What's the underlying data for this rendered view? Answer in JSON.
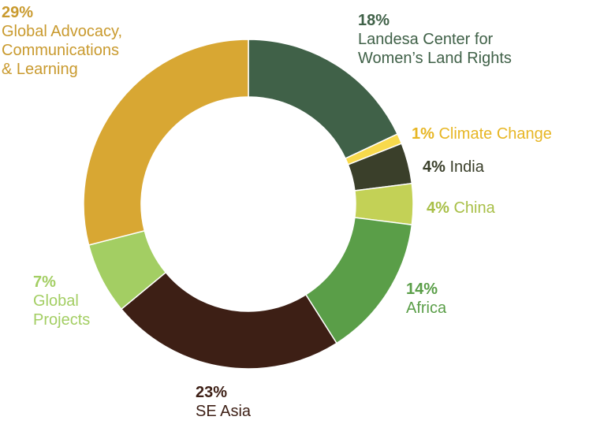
{
  "chart_data": {
    "type": "pie",
    "variant": "donut",
    "start_angle_deg": 0,
    "direction": "clockwise",
    "slices": [
      {
        "label": "Landesa Center for Women’s Land Rights",
        "pct_label": "18%",
        "value": 18,
        "color": "#406148"
      },
      {
        "label": "Climate Change",
        "pct_label": "1%",
        "value": 1,
        "color": "#f7d94c"
      },
      {
        "label": "India",
        "pct_label": "4%",
        "value": 4,
        "color": "#3a3f2a"
      },
      {
        "label": "China",
        "pct_label": "4%",
        "value": 4,
        "color": "#c3d156"
      },
      {
        "label": "Africa",
        "pct_label": "14%",
        "value": 14,
        "color": "#5a9e48"
      },
      {
        "label": "SE Asia",
        "pct_label": "23%",
        "value": 23,
        "color": "#3d1f15"
      },
      {
        "label": "Global Projects",
        "pct_label": "7%",
        "value": 7,
        "color": "#a3ce63"
      },
      {
        "label": "Global Advocacy, Communications & Learning",
        "pct_label": "29%",
        "value": 29,
        "color": "#d8a733"
      }
    ],
    "label_colors": {
      "landesa": "#406148",
      "climate": "#e7b624",
      "india": "#3a3f2a",
      "china": "#a8bf47",
      "africa": "#5a9e48",
      "seasia": "#3d1f15",
      "global_projects": "#a3ce63",
      "advocacy": "#c99a2e"
    }
  },
  "labels": {
    "landesa": {
      "pct": "18%",
      "lines": [
        "Landesa Center for",
        "Women’s Land Rights"
      ]
    },
    "climate": {
      "pct": "1%",
      "name": "Climate Change"
    },
    "india": {
      "pct": "4%",
      "name": "India"
    },
    "china": {
      "pct": "4%",
      "name": "China"
    },
    "africa": {
      "pct": "14%",
      "name": "Africa"
    },
    "seasia": {
      "pct": "23%",
      "name": "SE Asia"
    },
    "global_projects": {
      "pct": "7%",
      "lines": [
        "Global",
        "Projects"
      ]
    },
    "advocacy": {
      "pct": "29%",
      "lines": [
        "Global Advocacy,",
        "Communications",
        "& Learning"
      ]
    }
  }
}
